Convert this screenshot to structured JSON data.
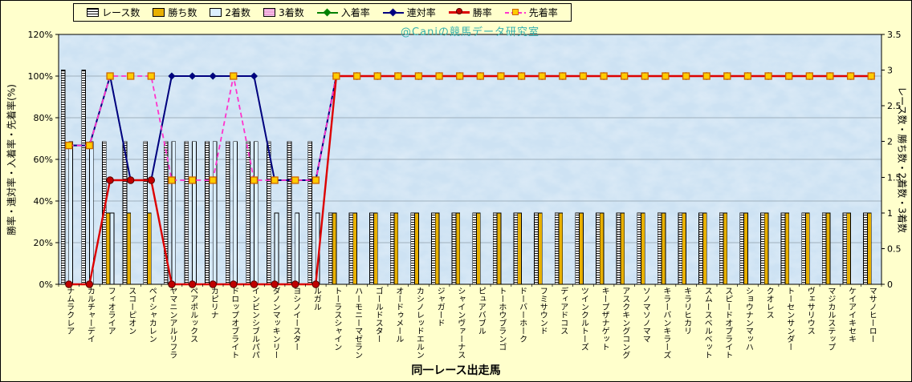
{
  "watermark": "@Caniの競馬データ研究室",
  "colors": {
    "background": "#ffffcc",
    "plot_bg": "#cde2f3",
    "gridline": "#9fb0bd",
    "races_fill": "#ffffff",
    "races_stripe": "#111111",
    "wins": "#e8b000",
    "seconds": "#dcefff",
    "thirds": "#eda0d8",
    "in_rate": "#008000",
    "top2_rate": "#000080",
    "win_rate": "#dd0000",
    "win_marker": "#c00000",
    "ahead_rate": "#ff33cc",
    "ahead_marker": "#ffcc00",
    "ahead_marker_border": "#cc6600",
    "watermark": "#35b0b0"
  },
  "chart_data": {
    "type": "combo-bar-line",
    "x_title": "同一レース出走馬",
    "legend_position": "top",
    "grid": true,
    "categories": [
      "ナムラクレア",
      "カルチャーデイ",
      "フィオライア",
      "スコーピオン",
      "ペイシャカレン",
      "ヤマニンアルリフラ",
      "ペアポルックス",
      "カピリナ",
      "ドロップオブライト",
      "インビンシブルパパ",
      "ダノンマッキンリー",
      "ヨシノイースター",
      "ルガル",
      "トーラスシャイン",
      "ハーモニーマゼラン",
      "ゴールドスター",
      "オードゥメール",
      "カシノレッドエルン",
      "ジャガード",
      "シャインヴァーナス",
      "ピュアバブル",
      "トーホウブランゴ",
      "ドーバーホーク",
      "フミサウンド",
      "ディアドコス",
      "ツインクルトーズ",
      "キープザナゲット",
      "アスクキングコング",
      "ソノマソノママ",
      "キラーバンキラーズ",
      "キラリヒカリ",
      "スムースベルベット",
      "スピードオブライト",
      "ショウナンマッハ",
      "クオレス",
      "トーセンサンダー",
      "ヴェサリウス",
      "マジカルステップ",
      "ケイアイキセキ",
      "マサノヒーロー"
    ],
    "bar_series": [
      {
        "name": "レース数",
        "key": "races",
        "axis": "right",
        "values": [
          3,
          3,
          2,
          2,
          2,
          2,
          2,
          2,
          2,
          2,
          2,
          2,
          2,
          1,
          1,
          1,
          1,
          1,
          1,
          1,
          1,
          1,
          1,
          1,
          1,
          1,
          1,
          1,
          1,
          1,
          1,
          1,
          1,
          1,
          1,
          1,
          1,
          1,
          1,
          1
        ]
      },
      {
        "name": "勝ち数",
        "key": "wins",
        "axis": "right",
        "values": [
          0,
          0,
          1,
          1,
          1,
          0,
          0,
          0,
          0,
          0,
          0,
          0,
          0,
          1,
          1,
          1,
          1,
          1,
          1,
          1,
          1,
          1,
          1,
          1,
          1,
          1,
          1,
          1,
          1,
          1,
          1,
          1,
          1,
          1,
          1,
          1,
          1,
          1,
          1,
          1
        ]
      },
      {
        "name": "2着数",
        "key": "seconds",
        "axis": "right",
        "values": [
          2,
          2,
          1,
          0,
          0,
          2,
          2,
          2,
          2,
          2,
          1,
          1,
          1,
          0,
          0,
          0,
          0,
          0,
          0,
          0,
          0,
          0,
          0,
          0,
          0,
          0,
          0,
          0,
          0,
          0,
          0,
          0,
          0,
          0,
          0,
          0,
          0,
          0,
          0,
          0
        ]
      },
      {
        "name": "3着数",
        "key": "thirds",
        "axis": "right",
        "values": [
          0,
          0,
          0,
          0,
          0,
          0,
          0,
          0,
          0,
          0,
          0,
          0,
          0,
          0,
          0,
          0,
          0,
          0,
          0,
          0,
          0,
          0,
          0,
          0,
          0,
          0,
          0,
          0,
          0,
          0,
          0,
          0,
          0,
          0,
          0,
          0,
          0,
          0,
          0,
          0
        ]
      }
    ],
    "line_series": [
      {
        "name": "入着率",
        "key": "in_rate",
        "axis": "left",
        "unit": "%",
        "values": [
          66.7,
          66.7,
          100,
          50,
          50,
          100,
          100,
          100,
          100,
          100,
          50,
          50,
          50,
          100,
          100,
          100,
          100,
          100,
          100,
          100,
          100,
          100,
          100,
          100,
          100,
          100,
          100,
          100,
          100,
          100,
          100,
          100,
          100,
          100,
          100,
          100,
          100,
          100,
          100,
          100
        ]
      },
      {
        "name": "連対率",
        "key": "top2_rate",
        "axis": "left",
        "unit": "%",
        "values": [
          66.7,
          66.7,
          100,
          50,
          50,
          100,
          100,
          100,
          100,
          100,
          50,
          50,
          50,
          100,
          100,
          100,
          100,
          100,
          100,
          100,
          100,
          100,
          100,
          100,
          100,
          100,
          100,
          100,
          100,
          100,
          100,
          100,
          100,
          100,
          100,
          100,
          100,
          100,
          100,
          100
        ]
      },
      {
        "name": "勝率",
        "key": "win_rate",
        "axis": "left",
        "unit": "%",
        "values": [
          0,
          0,
          50,
          50,
          50,
          0,
          0,
          0,
          0,
          0,
          0,
          0,
          0,
          100,
          100,
          100,
          100,
          100,
          100,
          100,
          100,
          100,
          100,
          100,
          100,
          100,
          100,
          100,
          100,
          100,
          100,
          100,
          100,
          100,
          100,
          100,
          100,
          100,
          100,
          100
        ]
      },
      {
        "name": "先着率",
        "key": "ahead_rate",
        "axis": "left",
        "unit": "%",
        "values": [
          66.7,
          66.7,
          100,
          100,
          100,
          50,
          50,
          50,
          100,
          50,
          50,
          50,
          50,
          100,
          100,
          100,
          100,
          100,
          100,
          100,
          100,
          100,
          100,
          100,
          100,
          100,
          100,
          100,
          100,
          100,
          100,
          100,
          100,
          100,
          100,
          100,
          100,
          100,
          100,
          100
        ]
      }
    ],
    "left_axis": {
      "title": "勝率・連対率・入着率・先着率(%)",
      "min": 0,
      "max": 120,
      "tick_step": 20,
      "tick_labels": [
        "0%",
        "20%",
        "40%",
        "60%",
        "80%",
        "100%",
        "120%"
      ]
    },
    "right_axis": {
      "title": "レース数・勝ち数・2着数・3着数",
      "min": 0,
      "max": 3.5,
      "tick_step": 0.5,
      "tick_labels": [
        "0",
        "0.5",
        "1",
        "1.5",
        "2",
        "2.5",
        "3",
        "3.5"
      ]
    }
  }
}
